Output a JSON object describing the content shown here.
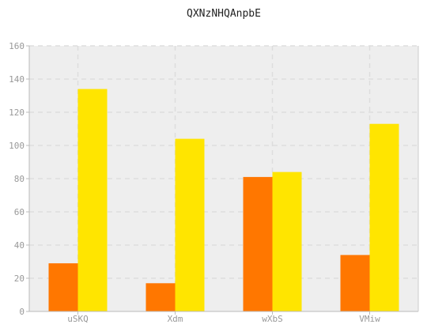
{
  "chart_data": {
    "type": "bar",
    "title": "QXNzNHQAnpbE",
    "xlabel": "",
    "ylabel": "",
    "categories": [
      "uSKQ",
      "Xdm",
      "wXbS",
      "VMiw"
    ],
    "series": [
      {
        "values": [
          29,
          17,
          81,
          34
        ],
        "color": "#ff7700"
      },
      {
        "values": [
          134,
          104,
          84,
          113
        ],
        "color": "#ffe500"
      }
    ],
    "ylim": [
      0,
      160
    ],
    "yticks": [
      0,
      20,
      40,
      60,
      80,
      100,
      120,
      140,
      160
    ],
    "grid": true,
    "legend": "none",
    "plot_background": "#eeeeee",
    "grid_color": "#dddddd"
  }
}
